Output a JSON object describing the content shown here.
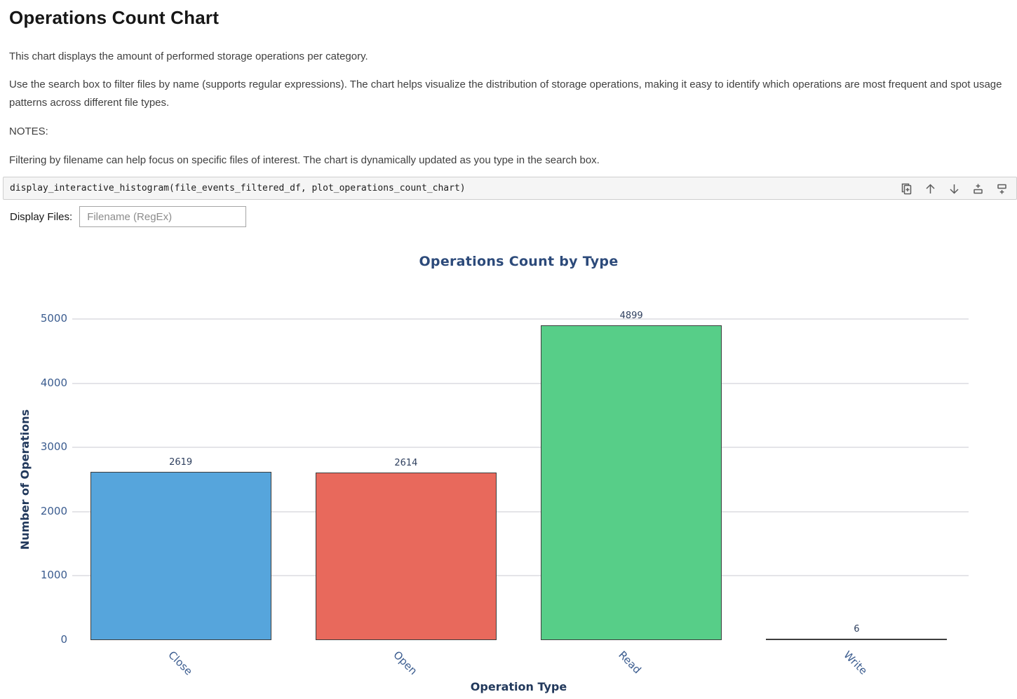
{
  "doc": {
    "title": "Operations Count Chart",
    "paragraph_1": "This chart displays the amount of performed storage operations per category.",
    "paragraph_2": "Use the search box to filter files by name (supports regular expressions). The chart helps visualize the distribution of storage operations, making it easy to identify which operations are most frequent and spot usage patterns across different file types.",
    "notes_label": "NOTES:",
    "paragraph_3": "Filtering by filename can help focus on specific files of interest. The chart is dynamically updated as you type in the search box."
  },
  "code_cell": {
    "code": "display_interactive_histogram(file_events_filtered_df, plot_operations_count_chart)",
    "toolbar_icons": [
      {
        "name": "duplicate-cell-icon"
      },
      {
        "name": "move-cell-up-icon"
      },
      {
        "name": "move-cell-down-icon"
      },
      {
        "name": "insert-cell-above-icon"
      },
      {
        "name": "insert-cell-below-icon"
      }
    ],
    "icon_color": "#5c5c5c"
  },
  "filter": {
    "label": "Display Files:",
    "placeholder": "Filename (RegEx)",
    "value": ""
  },
  "chart_data": {
    "type": "bar",
    "title": "Operations Count by Type",
    "categories": [
      "Close",
      "Open",
      "Read",
      "Write"
    ],
    "values": [
      2619,
      2614,
      4899,
      6
    ],
    "bar_colors": [
      "#56a5dc",
      "#e8695c",
      "#57ce88",
      "#3d3d3d"
    ],
    "bar_border_color": "#3d3d3d",
    "xlabel": "Operation Type",
    "ylabel": "Number of Operations",
    "ylim": [
      0,
      5000
    ],
    "yticks": [
      0,
      1000,
      2000,
      3000,
      4000,
      5000
    ],
    "grid": true,
    "legend": false,
    "value_labels_shown": true,
    "x_tick_rotation_deg": 45,
    "colors": {
      "title": "#2c4a7a",
      "axis_title": "#22395c",
      "tick_label": "#3b5c8f",
      "value_label": "#2e3f5e",
      "gridline": "#e4e4e8"
    }
  }
}
